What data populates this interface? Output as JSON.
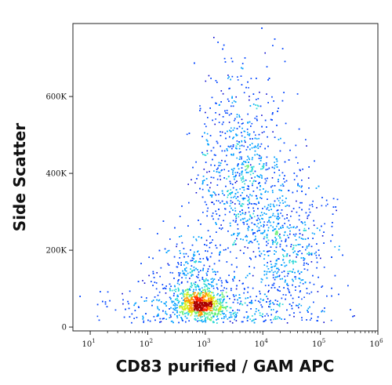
{
  "chart_data": {
    "type": "scatter",
    "subtype": "flow-cytometry density dot plot",
    "title": "",
    "xlabel": "CD83 purified / GAM APC",
    "ylabel": "Side Scatter",
    "x_scale": "log",
    "xlim": [
      5,
      1000000
    ],
    "ylim": [
      -10000,
      790000
    ],
    "x_ticks": [
      {
        "value": 10,
        "label_base": "10",
        "label_exp": "1"
      },
      {
        "value": 100,
        "label_base": "10",
        "label_exp": "2"
      },
      {
        "value": 1000,
        "label_base": "10",
        "label_exp": "3"
      },
      {
        "value": 10000,
        "label_base": "10",
        "label_exp": "4"
      },
      {
        "value": 100000,
        "label_base": "10",
        "label_exp": "5"
      },
      {
        "value": 1000000,
        "label_base": "10",
        "label_exp": "6"
      }
    ],
    "y_ticks": [
      {
        "value": 0,
        "label": "0"
      },
      {
        "value": 200000,
        "label": "200K"
      },
      {
        "value": 400000,
        "label": "400K"
      },
      {
        "value": 600000,
        "label": "600K"
      }
    ],
    "density_colormap": [
      "#0000cc",
      "#0044ff",
      "#00a0ff",
      "#2fd8d8",
      "#6cf07a",
      "#d6ef1a",
      "#ff9a00",
      "#ff2200",
      "#aa0000"
    ],
    "populations": [
      {
        "center_log10_x": 2.9,
        "center_y": 60000,
        "log_spread_x": 0.2,
        "spread_y": 18000,
        "weight": 0.22,
        "peak": "high"
      },
      {
        "center_log10_x": 2.75,
        "center_y": 120000,
        "log_spread_x": 0.33,
        "spread_y": 55000,
        "weight": 0.14,
        "peak": "medium"
      },
      {
        "center_log10_x": 3.6,
        "center_y": 410000,
        "log_spread_x": 0.38,
        "spread_y": 130000,
        "weight": 0.3,
        "peak": "medium"
      },
      {
        "center_log10_x": 4.4,
        "center_y": 220000,
        "log_spread_x": 0.35,
        "spread_y": 85000,
        "weight": 0.2,
        "peak": "low"
      },
      {
        "center_log10_x": 3.2,
        "center_y": 50000,
        "log_spread_x": 0.9,
        "spread_y": 30000,
        "weight": 0.14,
        "peak": "low"
      }
    ]
  }
}
